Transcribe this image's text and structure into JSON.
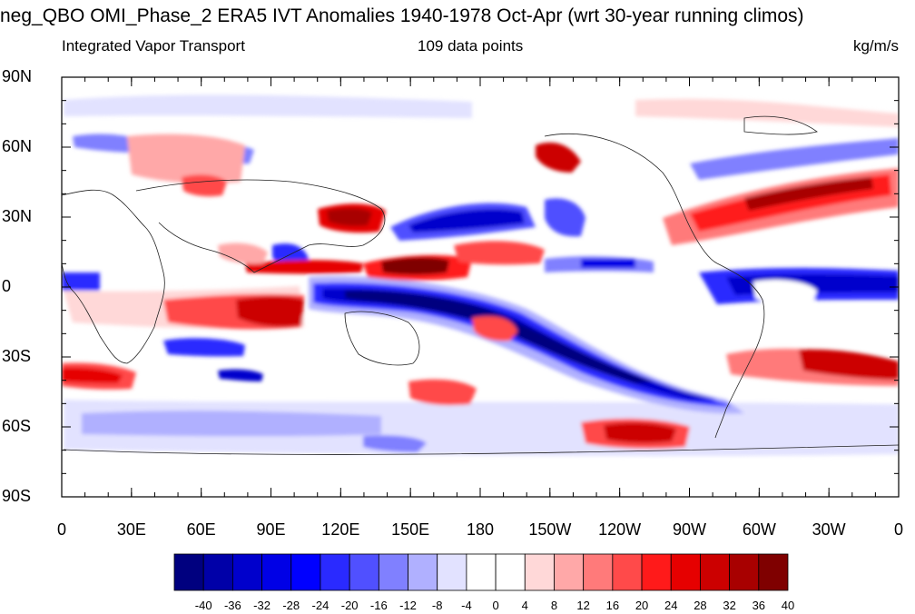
{
  "title": "neg_QBO OMI_Phase_2 ERA5 IVT Anomalies 1940-1978 Oct-Apr (wrt 30-year running climos)",
  "subtitle_left": "Integrated Vapor Transport",
  "subtitle_center": "109 data points",
  "subtitle_right": "kg/m/s",
  "lat_labels": [
    "90N",
    "60N",
    "30N",
    "0",
    "30S",
    "60S",
    "90S"
  ],
  "lon_labels": [
    "0",
    "30E",
    "60E",
    "90E",
    "120E",
    "150E",
    "180",
    "150W",
    "120W",
    "90W",
    "60W",
    "30W",
    "0"
  ],
  "colorbar": {
    "labels": [
      "-40",
      "-36",
      "-32",
      "-28",
      "-24",
      "-20",
      "-16",
      "-12",
      "-8",
      "-4",
      "0",
      "4",
      "8",
      "12",
      "16",
      "20",
      "24",
      "28",
      "32",
      "36",
      "40"
    ],
    "colors": [
      "#00007f",
      "#0000a8",
      "#0000cc",
      "#0000e6",
      "#0000ff",
      "#2a2aff",
      "#5050ff",
      "#8080ff",
      "#b0b0ff",
      "#e2e2ff",
      "#ffffff",
      "#ffffff",
      "#ffd8d8",
      "#ffa8a8",
      "#ff7a7a",
      "#ff4a4a",
      "#ff1a1a",
      "#e60000",
      "#cc0000",
      "#a80000",
      "#7f0000"
    ]
  },
  "map": {
    "lat_range": [
      -90,
      90
    ],
    "lon_range": [
      0,
      360
    ],
    "anomaly_features": [
      {
        "name": "equatorial-pacific-negative",
        "value": -40
      },
      {
        "name": "south-pacific-convergence-negative",
        "value": -36
      },
      {
        "name": "north-pacific-negative",
        "value": -32
      },
      {
        "name": "equatorial-atlantic-negative",
        "value": -32
      },
      {
        "name": "north-atlantic-positive",
        "value": 36
      },
      {
        "name": "indian-ocean-positive",
        "value": 36
      },
      {
        "name": "western-pacific-positive",
        "value": 36
      },
      {
        "name": "south-atlantic-positive",
        "value": 32
      },
      {
        "name": "southern-ocean-positive",
        "value": 28
      },
      {
        "name": "alaska-positive",
        "value": 28
      }
    ]
  }
}
